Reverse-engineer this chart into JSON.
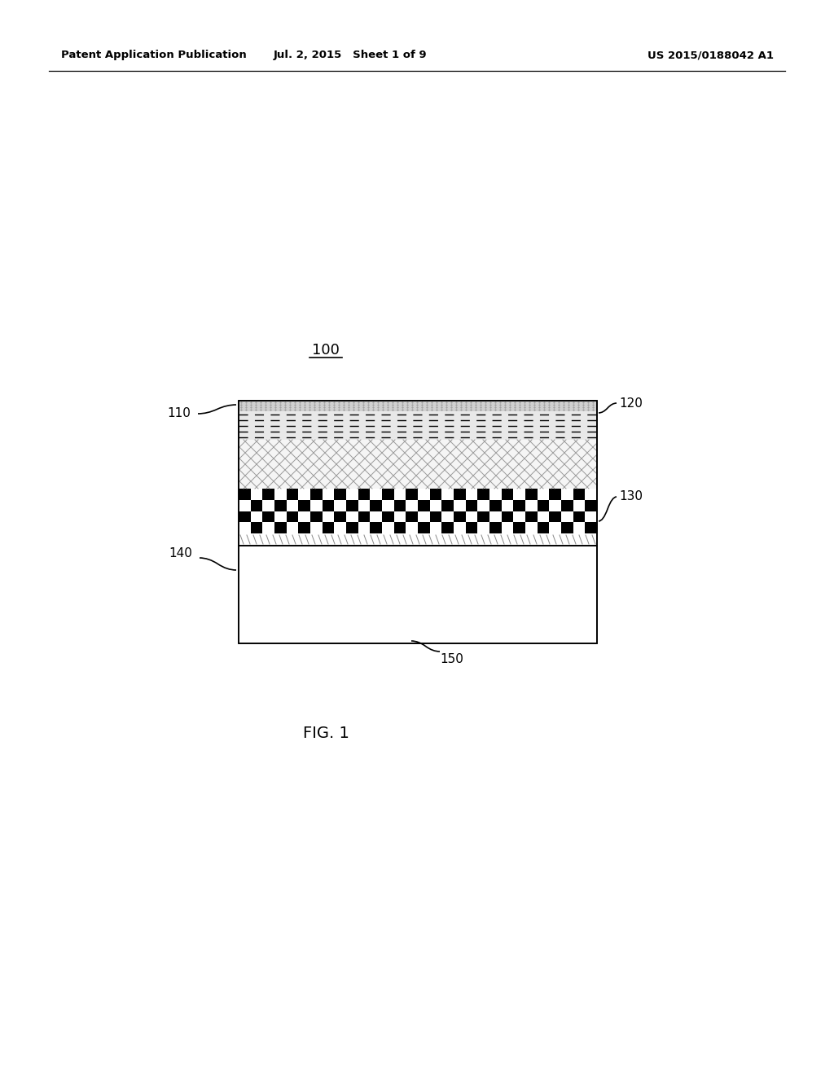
{
  "title_left": "Patent Application Publication",
  "title_mid": "Jul. 2, 2015   Sheet 1 of 9",
  "title_right": "US 2015/0188042 A1",
  "fig_label": "FIG. 1",
  "component_label": "100",
  "background_color": "#ffffff"
}
